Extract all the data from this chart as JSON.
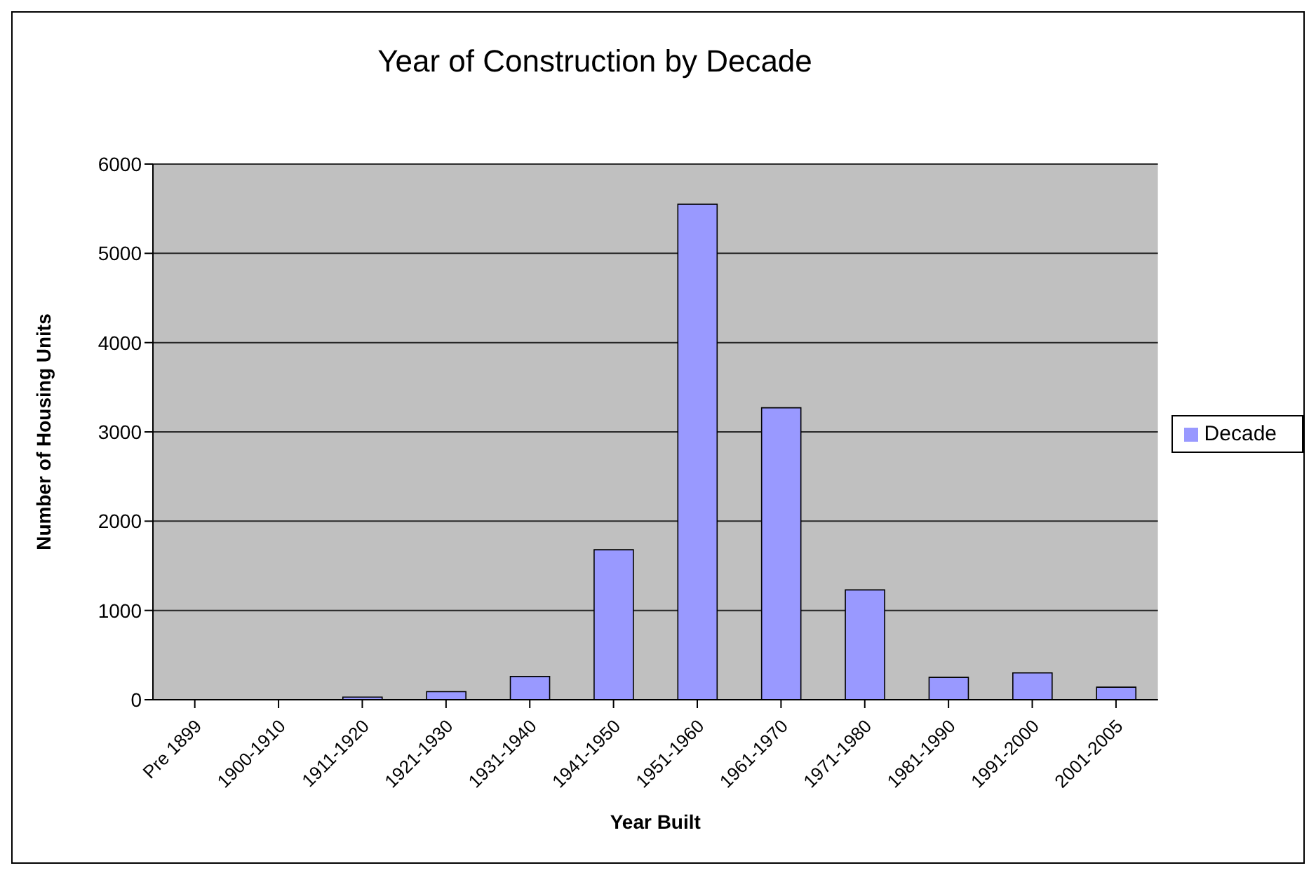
{
  "chart_data": {
    "type": "bar",
    "title": "Year of Construction by Decade",
    "xlabel": "Year Built",
    "ylabel": "Number of Housing Units",
    "categories": [
      "Pre 1899",
      "1900-1910",
      "1911-1920",
      "1921-1930",
      "1931-1940",
      "1941-1950",
      "1951-1960",
      "1961-1970",
      "1971-1980",
      "1981-1990",
      "1991-2000",
      "2001-2005"
    ],
    "series": [
      {
        "name": "Decade",
        "color": "#9999ff",
        "values": [
          0,
          0,
          30,
          90,
          260,
          1680,
          5550,
          3270,
          1230,
          250,
          300,
          140
        ]
      }
    ],
    "ylim": [
      0,
      6000
    ],
    "yticks": [
      0,
      1000,
      2000,
      3000,
      4000,
      5000,
      6000
    ],
    "grid": "y",
    "legend": "right"
  }
}
